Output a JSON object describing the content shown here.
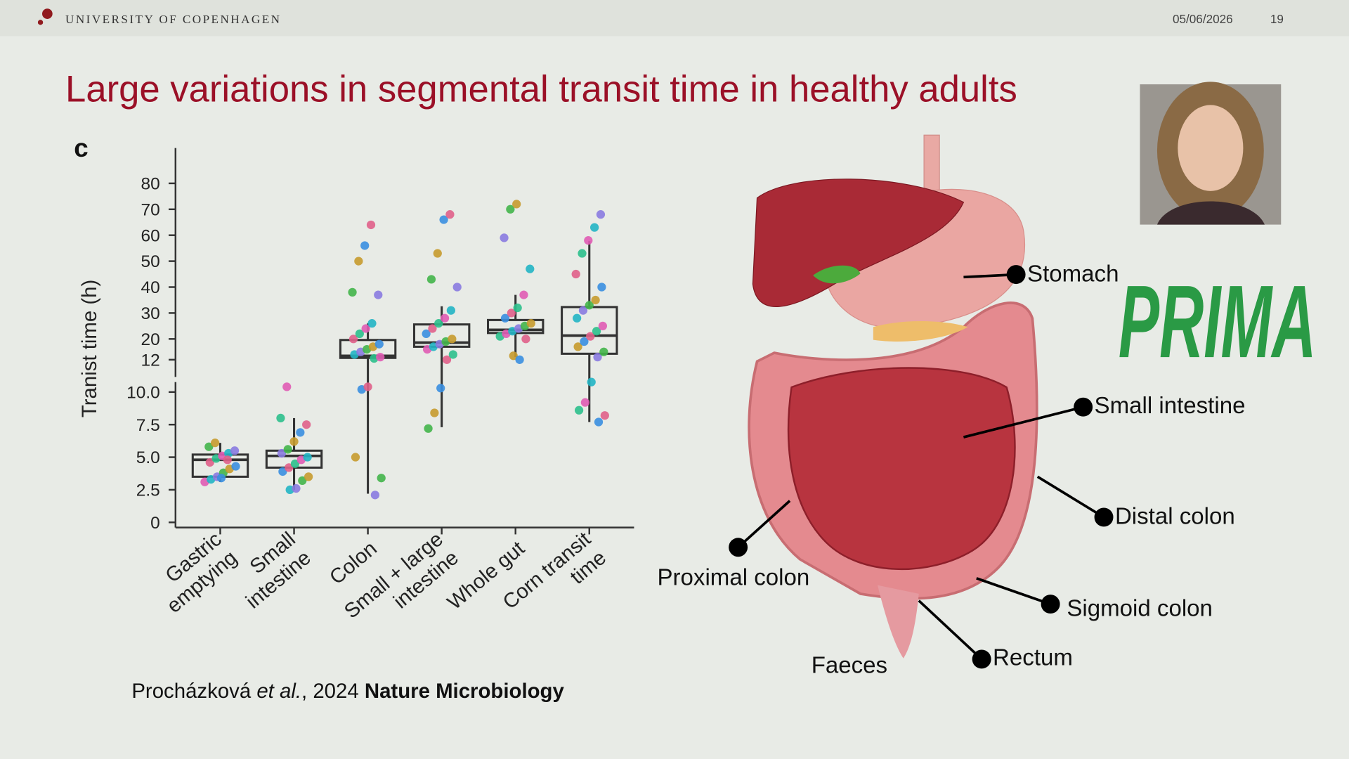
{
  "header": {
    "institution": "UNIVERSITY OF COPENHAGEN",
    "date": "05/06/2026",
    "page": "19"
  },
  "title": "Large variations in segmental transit time in healthy adults",
  "chart_data": {
    "type": "box",
    "panel_label": "c",
    "y_label": "Tranist time (h)",
    "categories": [
      [
        "Gastric",
        "emptying"
      ],
      [
        "Small",
        "intestine"
      ],
      [
        "Colon"
      ],
      [
        "Small + large",
        "intestine"
      ],
      [
        "Whole gut"
      ],
      [
        "Corn transit",
        "time"
      ]
    ],
    "boxes": [
      {
        "min": 3.1,
        "q1": 3.5,
        "median": 4.8,
        "q3": 5.2,
        "max": 6.1
      },
      {
        "min": 2.5,
        "q1": 4.2,
        "median": 5.1,
        "q3": 5.5,
        "max": 8
      },
      {
        "min": 2.2,
        "q1": 12.7,
        "median": 13.5,
        "q3": 19.6,
        "max": 26
      },
      {
        "min": 7.3,
        "q1": 17,
        "median": 18.6,
        "q3": 25.6,
        "max": 32.6
      },
      {
        "min": 13,
        "q1": 22.3,
        "median": 23.5,
        "q3": 27.3,
        "max": 37
      },
      {
        "min": 7.7,
        "q1": 14.3,
        "median": 21.3,
        "q3": 32.3,
        "max": 57.8
      }
    ],
    "points": [
      [
        3.1,
        3.3,
        3.5,
        3.8,
        4.1,
        4.3,
        4.6,
        4.9,
        5.1,
        5.3,
        5.5,
        5.8,
        6.1,
        3.4,
        4.8
      ],
      [
        2.5,
        2.6,
        3.2,
        3.5,
        3.9,
        4.2,
        4.5,
        4.8,
        5,
        5.3,
        5.6,
        6.2,
        6.9,
        7.5,
        8,
        10.4
      ],
      [
        2.1,
        3.4,
        5,
        10.2,
        10.4,
        12.5,
        13,
        14,
        15,
        16,
        17,
        18,
        20,
        22,
        24,
        26,
        37,
        38,
        50,
        56,
        64
      ],
      [
        7.2,
        8.4,
        10.3,
        12,
        14,
        16,
        17,
        18,
        19,
        20,
        22,
        24,
        26,
        28,
        31,
        40,
        43,
        53,
        66,
        68
      ],
      [
        13.5,
        12,
        20,
        21,
        22,
        23,
        24,
        25,
        26,
        28,
        30,
        32,
        37,
        47,
        59,
        70,
        72
      ],
      [
        7.7,
        8.2,
        8.6,
        9.2,
        10.7,
        13,
        15,
        17,
        19,
        21,
        23,
        25,
        28,
        31,
        33,
        35,
        40,
        45,
        53,
        58,
        63,
        68
      ]
    ],
    "point_colors": [
      "#e05cb4",
      "#22b5c4",
      "#8a7be0",
      "#43b54a",
      "#c79b2d",
      "#3a8fe0",
      "#e0608a",
      "#2cc08c"
    ],
    "box_color": "#333333",
    "ylim_lower": [
      0,
      10.5
    ],
    "yticks_lower": [
      0,
      2.5,
      {
        "value": 5,
        "label": "5.0"
      },
      7.5,
      {
        "value": 10,
        "label": "10.0"
      }
    ],
    "ylim_upper": [
      12,
      85
    ],
    "yticks_upper": [
      12,
      20,
      30,
      40,
      50,
      60,
      70,
      80
    ]
  },
  "citation": {
    "author": "Procházková",
    "etal": "et al.",
    "year": ", 2024",
    "journal": "Nature Microbiology"
  },
  "diagram": {
    "labels": [
      "Stomach",
      "Small intestine",
      "Distal colon",
      "Proximal colon",
      "Sigmoid colon",
      "Faeces",
      "Rectum"
    ]
  },
  "logo": "PRIMA"
}
